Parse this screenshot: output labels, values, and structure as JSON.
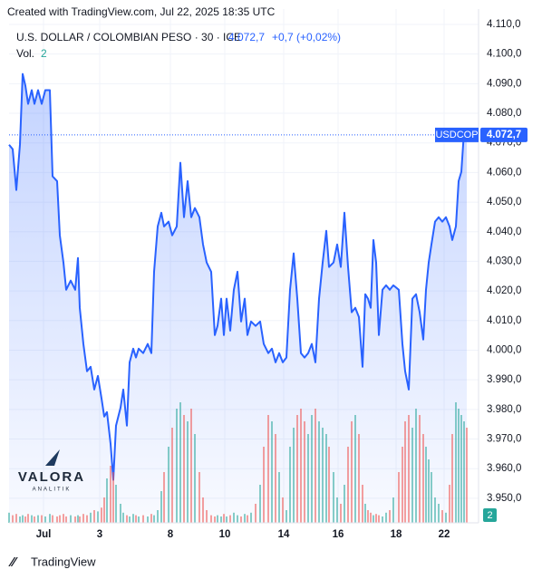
{
  "header": {
    "created": "Created with TradingView.com, Jul 22, 2025 18:35 UTC",
    "symbol": "U.S. DOLLAR / COLOMBIAN PESO · 30 · ICE",
    "price": "4.072,7",
    "change": "+0,7 (+0,02%)",
    "volume_label": "Vol.",
    "volume_value": "2"
  },
  "logo": {
    "name": "VALORA",
    "sub": "ANALITIK"
  },
  "footer": {
    "brand": "TradingView"
  },
  "chart_data": {
    "type": "line",
    "ticker": "USDCOP",
    "last_label": "4.072,7",
    "xlim": [
      0,
      518
    ],
    "xticks": [
      {
        "value": 38,
        "label": "Jul"
      },
      {
        "value": 100,
        "label": "3"
      },
      {
        "value": 178,
        "label": "8"
      },
      {
        "value": 238,
        "label": "10"
      },
      {
        "value": 303,
        "label": "14"
      },
      {
        "value": 363,
        "label": "16"
      },
      {
        "value": 427,
        "label": "18"
      },
      {
        "value": 480,
        "label": "22"
      }
    ],
    "ylim": [
      3941.7,
      4115.2
    ],
    "yticks": [
      {
        "value": 3950,
        "label": "3.950,0"
      },
      {
        "value": 3960,
        "label": "3.960,0"
      },
      {
        "value": 3970,
        "label": "3.970,0"
      },
      {
        "value": 3980,
        "label": "3.980,0"
      },
      {
        "value": 3990,
        "label": "3.990,0"
      },
      {
        "value": 4000,
        "label": "4.000,0"
      },
      {
        "value": 4010,
        "label": "4.010,0"
      },
      {
        "value": 4020,
        "label": "4.020,0"
      },
      {
        "value": 4030,
        "label": "4.030,0"
      },
      {
        "value": 4040,
        "label": "4.040,0"
      },
      {
        "value": 4050,
        "label": "4.050,0"
      },
      {
        "value": 4060,
        "label": "4.060,0"
      },
      {
        "value": 4070,
        "label": "4.070,0"
      },
      {
        "value": 4080,
        "label": "4.080,0"
      },
      {
        "value": 4090,
        "label": "4.090,0"
      },
      {
        "value": 4100,
        "label": "4.100,0"
      },
      {
        "value": 4110,
        "label": "4.110,0"
      }
    ],
    "grid": true,
    "x": [
      0,
      4,
      8,
      12,
      15,
      18,
      21,
      25,
      28,
      32,
      36,
      40,
      45,
      48,
      53,
      56,
      60,
      63,
      68,
      73,
      76,
      78,
      82,
      86,
      90,
      94,
      98,
      102,
      105,
      108,
      112,
      115,
      118,
      123,
      126,
      130,
      133,
      137,
      140,
      143,
      148,
      153,
      157,
      160,
      164,
      168,
      171,
      176,
      180,
      185,
      189,
      193,
      197,
      201,
      205,
      210,
      214,
      218,
      223,
      227,
      230,
      234,
      237,
      240,
      244,
      248,
      252,
      256,
      260,
      263,
      267,
      272,
      277,
      281,
      286,
      290,
      294,
      298,
      302,
      306,
      310,
      314,
      318,
      322,
      326,
      330,
      334,
      338,
      342,
      346,
      350,
      353,
      358,
      362,
      366,
      370,
      374,
      378,
      382,
      386,
      390,
      393,
      396,
      399,
      402,
      405,
      408,
      412,
      416,
      420,
      424,
      430,
      434,
      437,
      441,
      445,
      449,
      453,
      457,
      460,
      463,
      466,
      470,
      474,
      478,
      482,
      486,
      489,
      493,
      496,
      499,
      502,
      505
    ],
    "series": [
      {
        "name": "USDCOP",
        "color": "#2962ff",
        "values": [
          4069.4,
          4067.9,
          4054.1,
          4069.4,
          4093.3,
          4089.3,
          4083.2,
          4087.8,
          4083.2,
          4087.8,
          4083.2,
          4087.8,
          4087.8,
          4058.7,
          4057.1,
          4038.8,
          4029.6,
          4020.4,
          4023.5,
          4020.4,
          4031.1,
          4014.3,
          4002.1,
          3992.9,
          3994.4,
          3986.7,
          3991.3,
          3983.7,
          3977.6,
          3979.1,
          3968.4,
          3956.2,
          3974.5,
          3980.6,
          3986.7,
          3974.5,
          3995.9,
          4000.5,
          3997.5,
          4000.5,
          3999.0,
          4002.1,
          3999.0,
          4026.5,
          4041.8,
          4046.4,
          4041.8,
          4043.4,
          4038.8,
          4041.8,
          4063.3,
          4044.9,
          4057.1,
          4044.9,
          4048.0,
          4044.9,
          4035.7,
          4029.6,
          4026.5,
          4005.1,
          4008.2,
          4017.4,
          4005.1,
          4017.4,
          4006.6,
          4020.4,
          4026.5,
          4009.7,
          4017.4,
          4005.1,
          4009.7,
          4008.2,
          4009.7,
          4002.1,
          3999.0,
          4000.5,
          3995.9,
          3999.0,
          3995.9,
          3997.5,
          4020.4,
          4032.7,
          4017.4,
          3999.0,
          3997.5,
          3999.0,
          4002.1,
          3995.9,
          4017.4,
          4029.6,
          4040.3,
          4028.1,
          4029.6,
          4035.7,
          4028.1,
          4046.4,
          4028.1,
          4012.8,
          4014.3,
          4011.2,
          3994.4,
          4018.9,
          4017.4,
          4014.3,
          4037.2,
          4029.6,
          4005.1,
          4020.4,
          4021.9,
          4020.4,
          4021.9,
          4020.4,
          4002.1,
          3992.9,
          3986.7,
          4017.4,
          4018.9,
          4012.8,
          4003.6,
          4020.4,
          4029.6,
          4035.7,
          4043.4,
          4044.9,
          4043.4,
          4044.9,
          4041.8,
          4037.2,
          4041.8,
          4057.1,
          4060.2,
          4074.0,
          4072.7
        ]
      },
      {
        "name": "Vol.",
        "axis": "y2",
        "up_color": "#26a69a",
        "down_color": "#ef5350",
        "values": [
          8,
          6,
          7,
          5,
          6,
          5,
          7,
          6,
          5,
          6,
          6,
          5,
          7,
          6,
          5,
          6,
          7,
          5,
          6,
          5,
          6,
          5,
          7,
          6,
          8,
          10,
          9,
          12,
          20,
          35,
          45,
          40,
          30,
          15,
          8,
          6,
          5,
          7,
          6,
          5,
          6,
          5,
          7,
          6,
          10,
          25,
          40,
          60,
          75,
          90,
          95,
          85,
          80,
          90,
          70,
          40,
          20,
          10,
          6,
          5,
          6,
          5,
          7,
          5,
          6,
          8,
          6,
          5,
          7,
          6,
          8,
          15,
          30,
          60,
          85,
          80,
          70,
          40,
          20,
          10,
          60,
          75,
          85,
          90,
          80,
          70,
          85,
          90,
          80,
          75,
          70,
          60,
          40,
          20,
          15,
          30,
          60,
          80,
          85,
          70,
          30,
          15,
          10,
          8,
          6,
          7,
          6,
          5,
          8,
          10,
          20,
          40,
          60,
          80,
          85,
          75,
          90,
          85,
          70,
          60,
          50,
          40,
          20,
          15,
          10,
          8,
          30,
          70,
          95,
          90,
          85,
          80,
          75
        ]
      }
    ],
    "y2lim": [
      0,
      100
    ]
  }
}
